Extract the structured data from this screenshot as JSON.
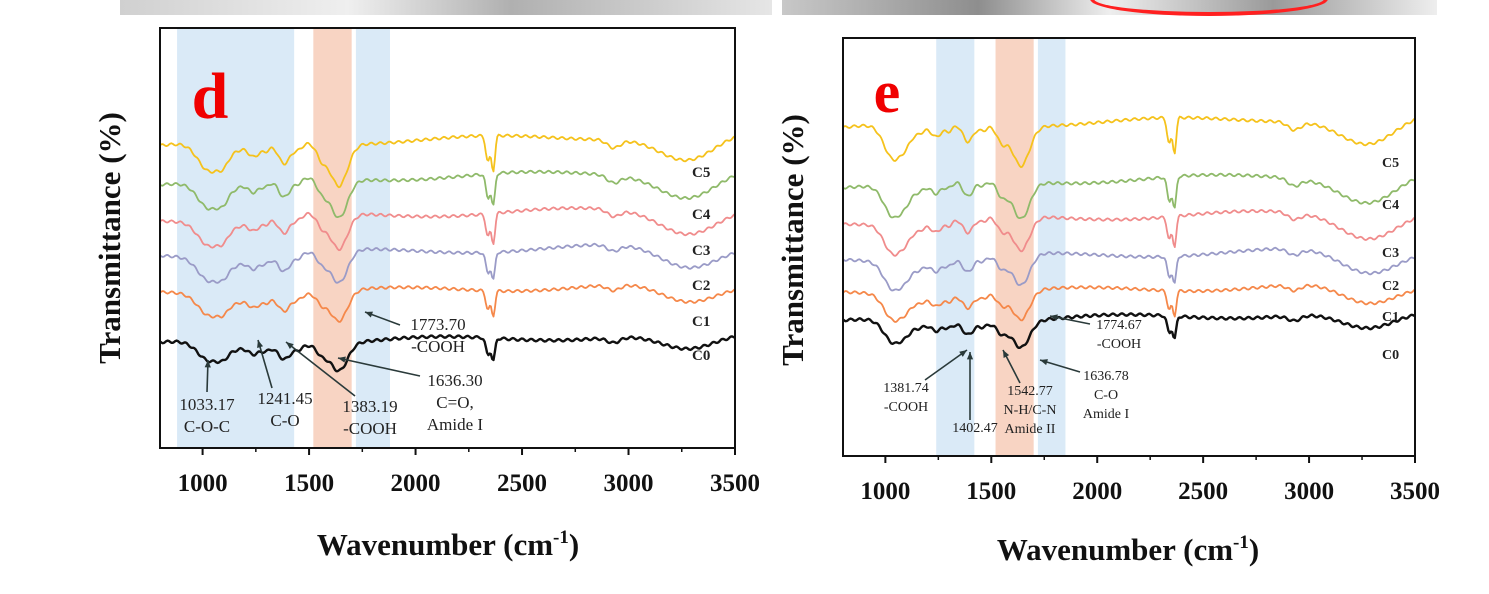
{
  "chart_data": [
    {
      "panel": "d",
      "type": "line",
      "xlabel_main": "Wavenumber (cm",
      "xlabel_sup": "-1",
      "xlabel_close": ")",
      "ylabel": "Transmittance (%)",
      "xlim": [
        800,
        3500
      ],
      "xticks": [
        "1000",
        "1500",
        "2000",
        "2500",
        "3000",
        "3500"
      ],
      "series_names": [
        "C0",
        "C1",
        "C2",
        "C3",
        "C4",
        "C5"
      ],
      "series_colors": [
        "#111111",
        "#f5884a",
        "#9a9bc7",
        "#f08c8c",
        "#8fba6a",
        "#f5c21c"
      ],
      "highlight_bands": [
        {
          "x0": 880,
          "x1": 1430,
          "color": "#d4e6f6"
        },
        {
          "x0": 1520,
          "x1": 1700,
          "color": "#f7cdb8"
        },
        {
          "x0": 1720,
          "x1": 1880,
          "color": "#d4e6f6"
        }
      ],
      "annotations": [
        {
          "lines": [
            "1033.17",
            "C-O-C"
          ],
          "x": 1033
        },
        {
          "lines": [
            "1241.45",
            "C-O"
          ],
          "x": 1241
        },
        {
          "lines": [
            "1383.19",
            "-COOH"
          ],
          "x": 1383
        },
        {
          "lines": [
            "1636.30",
            "C=O,",
            "Amide I"
          ],
          "x": 1636
        },
        {
          "lines": [
            "1773.70",
            "-COOH"
          ],
          "x": 1774
        }
      ]
    },
    {
      "panel": "e",
      "type": "line",
      "xlabel_main": "Wavenumber (cm",
      "xlabel_sup": "-1",
      "xlabel_close": ")",
      "ylabel": "Transmittance (%)",
      "xlim": [
        800,
        3500
      ],
      "xticks": [
        "1000",
        "1500",
        "2000",
        "2500",
        "3000",
        "3500"
      ],
      "series_names": [
        "C0",
        "C1",
        "C2",
        "C3",
        "C4",
        "C5"
      ],
      "series_colors": [
        "#111111",
        "#f5884a",
        "#9a9bc7",
        "#f08c8c",
        "#8fba6a",
        "#f5c21c"
      ],
      "highlight_bands": [
        {
          "x0": 1240,
          "x1": 1420,
          "color": "#d4e6f6"
        },
        {
          "x0": 1520,
          "x1": 1700,
          "color": "#f7cdb8"
        },
        {
          "x0": 1720,
          "x1": 1850,
          "color": "#d4e6f6"
        }
      ],
      "annotations": [
        {
          "lines": [
            "1381.74",
            "-COOH"
          ],
          "x": 1382
        },
        {
          "lines": [
            "1402.47"
          ],
          "x": 1402
        },
        {
          "lines": [
            "1542.77",
            "N-H/C-N",
            "Amide II"
          ],
          "x": 1543
        },
        {
          "lines": [
            "1636.78",
            "C-O",
            "Amide I"
          ],
          "x": 1637
        },
        {
          "lines": [
            "1774.67",
            "-COOH"
          ],
          "x": 1775
        }
      ]
    }
  ]
}
